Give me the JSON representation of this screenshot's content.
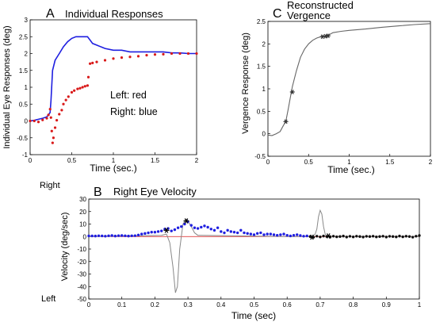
{
  "chart_data": [
    {
      "panel": "A",
      "type": "line",
      "title": "Individual Responses",
      "xlabel": "Time (sec.)",
      "ylabel": "Individual Eye Responses (deg)",
      "xlim": [
        0,
        2
      ],
      "ylim": [
        -1,
        3
      ],
      "x_ticks": [
        "0",
        "0.5",
        "1",
        "1.5",
        "2"
      ],
      "y_ticks": [
        "-1",
        "-0.5",
        "0",
        "0.5",
        "1",
        "1.5",
        "2",
        "2.5",
        "3"
      ],
      "annotations": [
        "Left: red",
        "Right: blue"
      ],
      "series": [
        {
          "name": "Right: blue",
          "color": "#1f1fe0",
          "style": "solid",
          "x": [
            0,
            0.05,
            0.1,
            0.15,
            0.2,
            0.24,
            0.25,
            0.27,
            0.3,
            0.35,
            0.4,
            0.45,
            0.5,
            0.55,
            0.6,
            0.65,
            0.69,
            0.72,
            0.75,
            0.8,
            0.9,
            1.0,
            1.1,
            1.2,
            1.3,
            1.4,
            1.5,
            1.6,
            1.7,
            1.8,
            1.9,
            2.0
          ],
          "values": [
            0,
            0.02,
            0.05,
            0.08,
            0.12,
            0.25,
            0.6,
            1.5,
            1.8,
            2.0,
            2.2,
            2.35,
            2.45,
            2.5,
            2.5,
            2.5,
            2.5,
            2.4,
            2.3,
            2.25,
            2.15,
            2.1,
            2.1,
            2.05,
            2.05,
            2.05,
            2.05,
            2.05,
            2.02,
            2.02,
            2.0,
            2.0
          ]
        },
        {
          "name": "Left: red",
          "color": "#d91a1a",
          "style": "dotted",
          "x": [
            0,
            0.05,
            0.1,
            0.15,
            0.2,
            0.22,
            0.24,
            0.25,
            0.26,
            0.27,
            0.28,
            0.3,
            0.32,
            0.35,
            0.38,
            0.4,
            0.43,
            0.46,
            0.5,
            0.53,
            0.57,
            0.6,
            0.63,
            0.66,
            0.69,
            0.7,
            0.72,
            0.75,
            0.8,
            0.9,
            1.0,
            1.1,
            1.2,
            1.3,
            1.4,
            1.5,
            1.6,
            1.7,
            1.8,
            1.9,
            2.0
          ],
          "values": [
            0,
            0,
            -0.03,
            0.03,
            0.08,
            0.18,
            0.35,
            0.1,
            -0.3,
            -0.65,
            -0.5,
            -0.2,
            0.02,
            0.2,
            0.32,
            0.5,
            0.62,
            0.72,
            0.85,
            0.9,
            0.95,
            0.97,
            1.0,
            1.03,
            1.05,
            1.3,
            1.7,
            1.72,
            1.75,
            1.8,
            1.85,
            1.88,
            1.9,
            1.92,
            1.95,
            1.97,
            1.98,
            2.0,
            2.0,
            2.0,
            2.0
          ]
        }
      ]
    },
    {
      "panel": "C",
      "type": "line",
      "title": "Reconstructed\nVergence",
      "xlabel": "Time (sec.)",
      "ylabel": "Vergence Response (deg)",
      "xlim": [
        0,
        2
      ],
      "ylim": [
        -0.5,
        2.5
      ],
      "x_ticks": [
        "0",
        "0.5",
        "1",
        "1.5",
        "2"
      ],
      "y_ticks": [
        "-0.5",
        "0",
        "0.5",
        "1",
        "1.5",
        "2",
        "2.5"
      ],
      "series": [
        {
          "color": "#666666",
          "x": [
            0,
            0.05,
            0.1,
            0.15,
            0.18,
            0.22,
            0.25,
            0.28,
            0.3,
            0.35,
            0.4,
            0.45,
            0.5,
            0.55,
            0.6,
            0.65,
            0.7,
            0.75,
            0.8,
            0.9,
            1.0,
            1.2,
            1.4,
            1.6,
            1.8,
            2.0
          ],
          "values": [
            -0.03,
            -0.04,
            0,
            0.05,
            0.15,
            0.28,
            0.55,
            0.85,
            1.05,
            1.4,
            1.7,
            1.88,
            2.0,
            2.08,
            2.13,
            2.16,
            2.17,
            2.2,
            2.25,
            2.28,
            2.3,
            2.33,
            2.37,
            2.4,
            2.43,
            2.45
          ]
        }
      ],
      "markers": {
        "symbol": "*",
        "x": [
          0.22,
          0.3,
          0.67,
          0.71,
          0.74
        ],
        "values": [
          0.27,
          0.93,
          2.16,
          2.17,
          2.18
        ]
      }
    },
    {
      "panel": "B",
      "type": "scatter",
      "title": "Right Eye Velocity",
      "xlabel": "Time (sec)",
      "ylabel": "Velocity (deg/sec)",
      "xlim": [
        0,
        1
      ],
      "ylim": [
        -50,
        30
      ],
      "x_ticks": [
        "0",
        "0.1",
        "0.2",
        "0.3",
        "0.4",
        "0.5",
        "0.6",
        "0.7",
        "0.8",
        "0.9",
        "1"
      ],
      "y_ticks": [
        "-50",
        "-40",
        "-30",
        "-20",
        "-10",
        "0",
        "10",
        "20",
        "30"
      ],
      "side_labels": [
        "Right",
        "Left"
      ],
      "zero_line_color": "#d91a1a",
      "trace": {
        "color": "#888888",
        "x": [
          0.0,
          0.22,
          0.235,
          0.245,
          0.255,
          0.262,
          0.268,
          0.275,
          0.285,
          0.295,
          0.31,
          0.32,
          0.33,
          0.6,
          0.665,
          0.675,
          0.685,
          0.69,
          0.695,
          0.7,
          0.705,
          0.71,
          0.715,
          0.72,
          0.73,
          1.0
        ],
        "values": [
          0,
          1,
          2,
          -5,
          -25,
          -45,
          -40,
          -10,
          10,
          14,
          8,
          3,
          1,
          0,
          0,
          0,
          2,
          6,
          16,
          21,
          18,
          8,
          2,
          0,
          0,
          0
        ]
      },
      "series": [
        {
          "color": "#1f1fe0",
          "x": [
            0.0,
            0.01,
            0.02,
            0.03,
            0.04,
            0.05,
            0.06,
            0.07,
            0.08,
            0.09,
            0.1,
            0.11,
            0.12,
            0.13,
            0.14,
            0.15,
            0.16,
            0.17,
            0.18,
            0.19,
            0.2,
            0.21,
            0.22,
            0.23,
            0.24,
            0.25,
            0.26,
            0.27,
            0.28,
            0.29,
            0.3,
            0.31,
            0.32,
            0.33,
            0.34,
            0.35,
            0.36,
            0.37,
            0.38,
            0.39,
            0.4,
            0.41,
            0.42,
            0.43,
            0.44,
            0.45,
            0.46,
            0.47,
            0.48,
            0.49,
            0.5,
            0.51,
            0.52,
            0.53,
            0.54,
            0.55,
            0.56,
            0.57,
            0.58,
            0.59,
            0.6,
            0.61,
            0.62,
            0.63,
            0.64,
            0.65,
            0.66
          ],
          "values": [
            0.5,
            0.5,
            0.4,
            0.6,
            0.5,
            0.3,
            0.6,
            0.8,
            0.4,
            0.7,
            0.8,
            0.6,
            0.4,
            0.6,
            0.7,
            1.2,
            2.0,
            2.5,
            3.0,
            3.5,
            3.5,
            4.0,
            4.5,
            6.0,
            6.5,
            4.5,
            5.5,
            7.0,
            8.0,
            10.0,
            12.0,
            9.0,
            7.0,
            6.5,
            7.5,
            8.5,
            7.5,
            6.0,
            5.0,
            7.0,
            4.0,
            3.0,
            5.0,
            4.0,
            3.5,
            3.0,
            5.0,
            3.0,
            2.5,
            2.0,
            1.5,
            2.5,
            3.0,
            1.5,
            2.0,
            2.0,
            1.5,
            1.0,
            1.5,
            2.0,
            1.0,
            0.5,
            1.0,
            1.5,
            0.8,
            0.3,
            0.5
          ]
        },
        {
          "color": "#111111",
          "x": [
            0.67,
            0.68,
            0.69,
            0.7,
            0.71,
            0.72,
            0.73,
            0.74,
            0.75,
            0.76,
            0.77,
            0.78,
            0.79,
            0.8,
            0.81,
            0.82,
            0.83,
            0.84,
            0.85,
            0.86,
            0.87,
            0.88,
            0.89,
            0.9,
            0.91,
            0.92,
            0.93,
            0.94,
            0.95,
            0.96,
            0.97,
            0.98,
            0.99,
            1.0
          ],
          "values": [
            0,
            -0.5,
            0.3,
            -0.3,
            0.4,
            0,
            -0.5,
            0.3,
            -0.2,
            0,
            0.4,
            -0.4,
            0.2,
            -0.3,
            0.3,
            0,
            -0.4,
            0.2,
            0,
            0.3,
            -0.3,
            0,
            0.3,
            -0.4,
            0.2,
            0,
            -0.3,
            0.4,
            -0.2,
            0.3,
            0,
            -0.5,
            0.3,
            0.8
          ]
        }
      ],
      "markers": {
        "symbol": "*",
        "x": [
          0.235,
          0.295,
          0.675,
          0.725
        ],
        "values": [
          5,
          12.5,
          -0.5,
          0.5
        ]
      }
    }
  ]
}
